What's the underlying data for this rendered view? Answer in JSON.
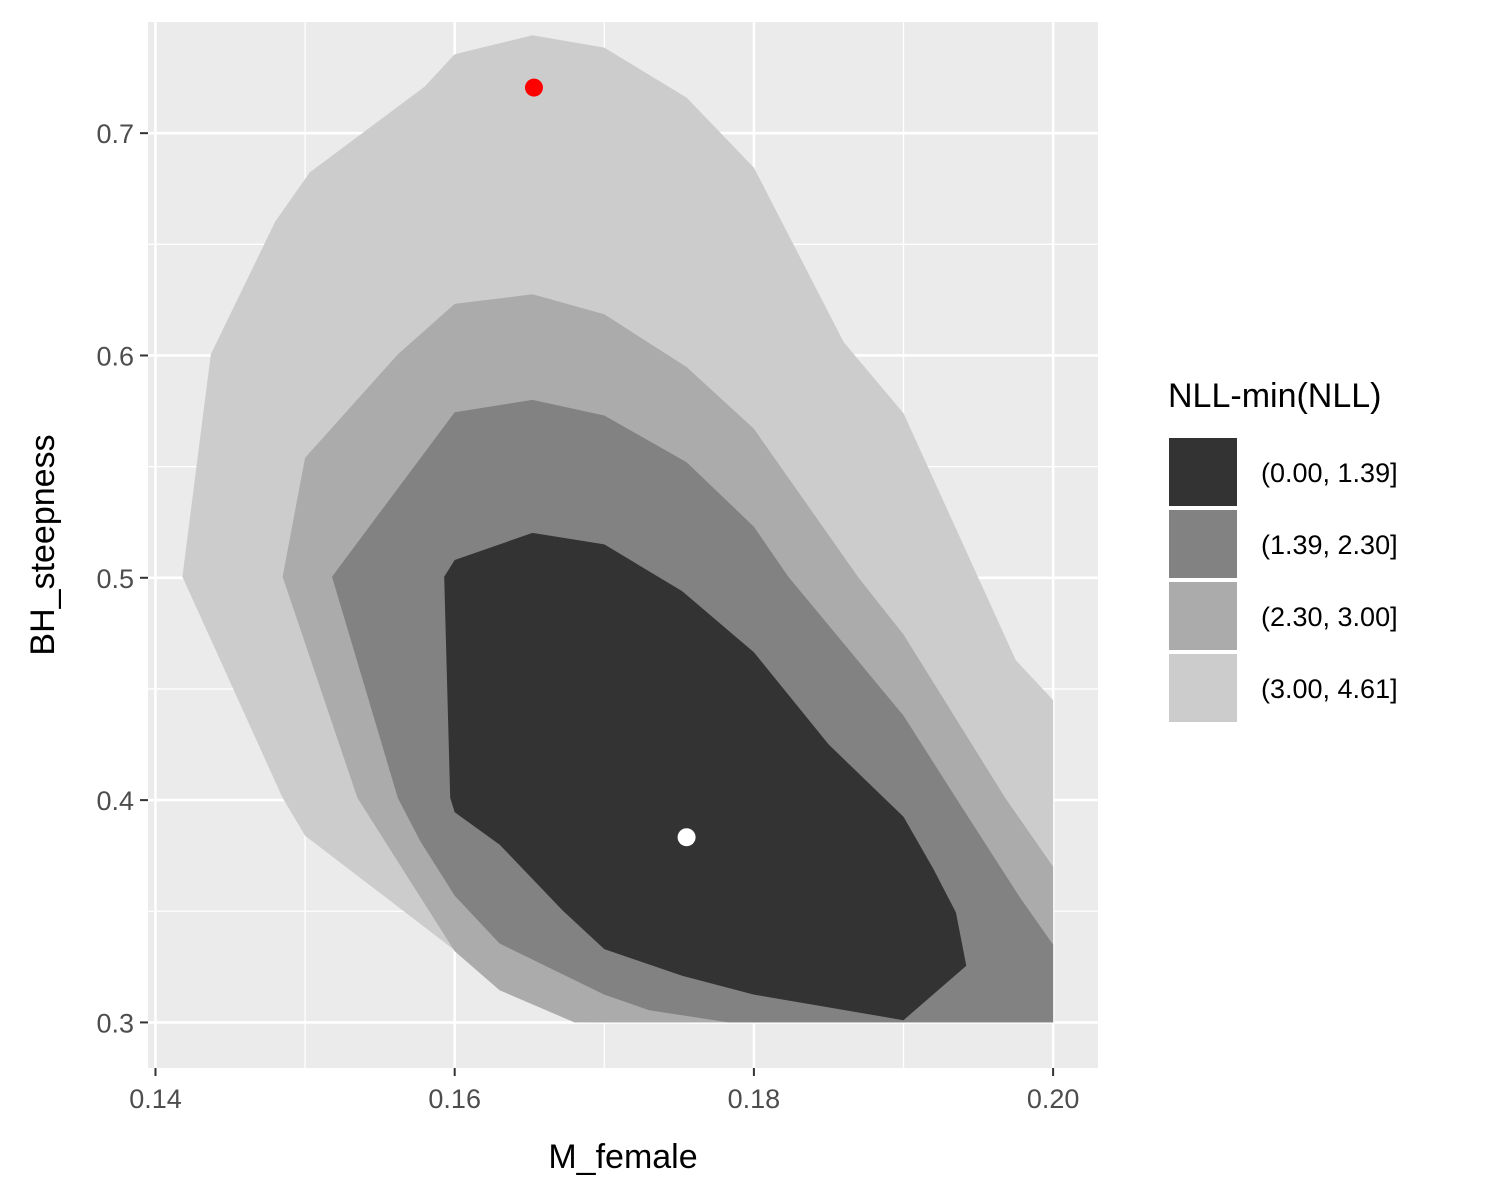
{
  "chart_data": {
    "type": "contour",
    "title": "",
    "xlabel": "M_female",
    "ylabel": "BH_steepness",
    "xlim": [
      0.1395,
      0.203
    ],
    "ylim": [
      0.2795,
      0.75
    ],
    "xticks": [
      0.14,
      0.16,
      0.18,
      0.2
    ],
    "xtick_labels": [
      "0.14",
      "0.16",
      "0.18",
      "0.20"
    ],
    "yticks": [
      0.3,
      0.4,
      0.5,
      0.6,
      0.7
    ],
    "ytick_labels": [
      "0.3",
      "0.4",
      "0.5",
      "0.6",
      "0.7"
    ],
    "grid": true,
    "legend": {
      "title": "NLL-min(NLL)",
      "position": "right",
      "entries": [
        {
          "label": "(0.00, 1.39]",
          "color": "#333333"
        },
        {
          "label": "(1.39, 2.30]",
          "color": "#828282"
        },
        {
          "label": "(2.30, 3.00]",
          "color": "#ababab"
        },
        {
          "label": "(3.00, 4.61]",
          "color": "#cccccc"
        }
      ]
    },
    "bands": [
      {
        "level": "(3.00, 4.61]",
        "color": "#cccccc",
        "polygon": [
          [
            0.1418,
            0.5005
          ],
          [
            0.1437,
            0.6005
          ],
          [
            0.148,
            0.6602
          ],
          [
            0.1503,
            0.6823
          ],
          [
            0.158,
            0.721
          ],
          [
            0.16,
            0.7355
          ],
          [
            0.1652,
            0.744
          ],
          [
            0.17,
            0.7385
          ],
          [
            0.1755,
            0.716
          ],
          [
            0.18,
            0.6845
          ],
          [
            0.186,
            0.606
          ],
          [
            0.19,
            0.574
          ],
          [
            0.195,
            0.5
          ],
          [
            0.1975,
            0.463
          ],
          [
            0.2,
            0.445
          ],
          [
            0.2,
            0.3
          ],
          [
            0.1688,
            0.3
          ],
          [
            0.16,
            0.3325
          ],
          [
            0.15,
            0.384
          ],
          [
            0.1485,
            0.401
          ]
        ]
      },
      {
        "level": "(2.30, 3.00]",
        "color": "#ababab",
        "polygon": [
          [
            0.1485,
            0.5005
          ],
          [
            0.15,
            0.554
          ],
          [
            0.1562,
            0.6005
          ],
          [
            0.16,
            0.6232
          ],
          [
            0.1652,
            0.6275
          ],
          [
            0.17,
            0.6185
          ],
          [
            0.1755,
            0.5948
          ],
          [
            0.18,
            0.567
          ],
          [
            0.187,
            0.5
          ],
          [
            0.19,
            0.4745
          ],
          [
            0.1968,
            0.401
          ],
          [
            0.2,
            0.37
          ],
          [
            0.2,
            0.3
          ],
          [
            0.178,
            0.3
          ],
          [
            0.1715,
            0.3
          ],
          [
            0.168,
            0.3
          ],
          [
            0.163,
            0.3145
          ],
          [
            0.16,
            0.332
          ],
          [
            0.1535,
            0.401
          ]
        ]
      },
      {
        "level": "(1.39, 2.30]",
        "color": "#828282",
        "polygon": [
          [
            0.1518,
            0.5005
          ],
          [
            0.16,
            0.5745
          ],
          [
            0.1652,
            0.58
          ],
          [
            0.17,
            0.573
          ],
          [
            0.1755,
            0.552
          ],
          [
            0.18,
            0.523
          ],
          [
            0.1823,
            0.5005
          ],
          [
            0.19,
            0.438
          ],
          [
            0.1935,
            0.401
          ],
          [
            0.1978,
            0.356
          ],
          [
            0.2,
            0.335
          ],
          [
            0.2,
            0.3
          ],
          [
            0.1783,
            0.3
          ],
          [
            0.173,
            0.3055
          ],
          [
            0.17,
            0.3125
          ],
          [
            0.163,
            0.3355
          ],
          [
            0.16,
            0.357
          ],
          [
            0.1577,
            0.3815
          ],
          [
            0.1562,
            0.401
          ]
        ]
      },
      {
        "level": "(0.00, 1.39]",
        "color": "#333333",
        "polygon": [
          [
            0.1593,
            0.5005
          ],
          [
            0.16,
            0.508
          ],
          [
            0.1652,
            0.5202
          ],
          [
            0.17,
            0.515
          ],
          [
            0.1752,
            0.494
          ],
          [
            0.18,
            0.4665
          ],
          [
            0.185,
            0.425
          ],
          [
            0.19,
            0.3925
          ],
          [
            0.192,
            0.369
          ],
          [
            0.1935,
            0.3495
          ],
          [
            0.1942,
            0.3255
          ],
          [
            0.19,
            0.301
          ],
          [
            0.18,
            0.3125
          ],
          [
            0.1752,
            0.321
          ],
          [
            0.17,
            0.333
          ],
          [
            0.1672,
            0.3505
          ],
          [
            0.163,
            0.38
          ],
          [
            0.16,
            0.3945
          ],
          [
            0.1597,
            0.401
          ]
        ]
      }
    ],
    "points": [
      {
        "x": 0.1653,
        "y": 0.7205,
        "color": "#ff0000"
      },
      {
        "x": 0.1755,
        "y": 0.3833,
        "color": "#ffffff"
      }
    ]
  }
}
